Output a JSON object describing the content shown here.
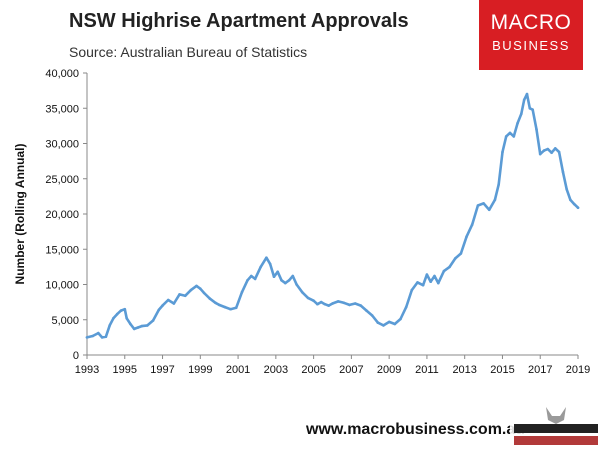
{
  "header": {
    "title": "NSW Highrise Apartment Approvals",
    "source": "Source: Australian Bureau of Statistics"
  },
  "logo": {
    "line1": "MACRO",
    "line2": "BUSINESS",
    "color": "#d81e23"
  },
  "footer": {
    "website": "www.macrobusiness.com.au"
  },
  "chart_data": {
    "type": "line",
    "title": "NSW Highrise Apartment Approvals",
    "xlabel": "",
    "ylabel": "Number (Rolling Annual)",
    "xlim": [
      1993,
      2019
    ],
    "ylim": [
      0,
      40000
    ],
    "x_ticks": [
      1993,
      1995,
      1997,
      1999,
      2001,
      2003,
      2005,
      2007,
      2009,
      2011,
      2013,
      2015,
      2017,
      2019
    ],
    "y_ticks": [
      0,
      5000,
      10000,
      15000,
      20000,
      25000,
      30000,
      35000,
      40000
    ],
    "y_tick_labels": [
      "0",
      "5,000",
      "10,000",
      "15,000",
      "20,000",
      "25,000",
      "30,000",
      "35,000",
      "40,000"
    ],
    "grid": false,
    "legend": "none",
    "series": [
      {
        "color": "#5b9bd5",
        "x": [
          1993.0,
          1993.3,
          1993.6,
          1993.8,
          1994.0,
          1994.2,
          1994.4,
          1994.6,
          1994.8,
          1995.0,
          1995.1,
          1995.3,
          1995.5,
          1995.7,
          1995.9,
          1996.2,
          1996.5,
          1996.8,
          1997.0,
          1997.3,
          1997.6,
          1997.9,
          1998.2,
          1998.5,
          1998.8,
          1999.0,
          1999.2,
          1999.5,
          1999.8,
          2000.0,
          2000.3,
          2000.6,
          2000.9,
          2001.2,
          2001.5,
          2001.7,
          2001.9,
          2002.2,
          2002.5,
          2002.7,
          2002.9,
          2003.1,
          2003.3,
          2003.5,
          2003.7,
          2003.9,
          2004.1,
          2004.4,
          2004.7,
          2005.0,
          2005.2,
          2005.4,
          2005.6,
          2005.8,
          2006.0,
          2006.3,
          2006.6,
          2006.9,
          2007.2,
          2007.5,
          2007.8,
          2008.1,
          2008.4,
          2008.7,
          2009.0,
          2009.3,
          2009.6,
          2009.9,
          2010.2,
          2010.5,
          2010.8,
          2011.0,
          2011.2,
          2011.4,
          2011.6,
          2011.9,
          2012.2,
          2012.5,
          2012.8,
          2013.1,
          2013.4,
          2013.7,
          2014.0,
          2014.3,
          2014.6,
          2014.8,
          2015.0,
          2015.2,
          2015.4,
          2015.6,
          2015.8,
          2016.0,
          2016.15,
          2016.3,
          2016.45,
          2016.6,
          2016.8,
          2017.0,
          2017.2,
          2017.4,
          2017.6,
          2017.8,
          2018.0,
          2018.2,
          2018.4,
          2018.6,
          2018.8,
          2019.0
        ],
        "y": [
          2500,
          2700,
          3100,
          2500,
          2600,
          4200,
          5200,
          5800,
          6300,
          6500,
          5200,
          4400,
          3700,
          3900,
          4100,
          4200,
          4900,
          6400,
          7000,
          7800,
          7300,
          8600,
          8400,
          9200,
          9800,
          9400,
          8800,
          8000,
          7400,
          7100,
          6800,
          6500,
          6700,
          8900,
          10600,
          11200,
          10800,
          12500,
          13800,
          12900,
          11100,
          11800,
          10600,
          10200,
          10600,
          11200,
          10000,
          8900,
          8100,
          7700,
          7200,
          7500,
          7200,
          7000,
          7300,
          7600,
          7400,
          7100,
          7300,
          7000,
          6300,
          5600,
          4600,
          4200,
          4700,
          4400,
          5100,
          6800,
          9200,
          10300,
          9900,
          11400,
          10400,
          11200,
          10200,
          11900,
          12500,
          13700,
          14400,
          16800,
          18500,
          21200,
          21500,
          20600,
          22000,
          24200,
          28800,
          31000,
          31500,
          31000,
          32900,
          34200,
          36200,
          37000,
          35000,
          34800,
          32000,
          28500,
          29000,
          29200,
          28700,
          29300,
          28800,
          26000,
          23500,
          22000,
          21400,
          20900
        ]
      }
    ]
  }
}
